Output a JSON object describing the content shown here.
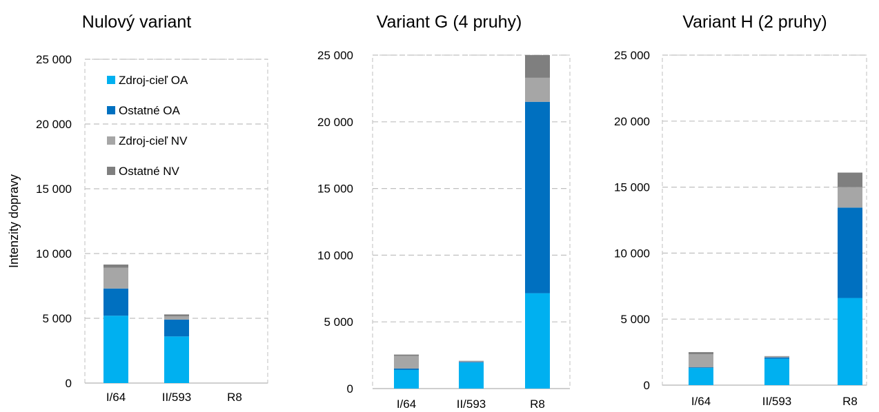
{
  "chart_data": [
    {
      "type": "bar",
      "stacked": true,
      "title": "Nulový variant",
      "ylabel": "Intenzity dopravy",
      "ylim": [
        0,
        25000
      ],
      "yticks": [
        0,
        5000,
        10000,
        15000,
        20000,
        25000
      ],
      "ytick_labels": [
        "0",
        "5 000",
        "10 000",
        "15 000",
        "20 000",
        "25 000"
      ],
      "categories": [
        "I/64",
        "II/593",
        "R8"
      ],
      "grid": true,
      "legend": "inside top-left",
      "series": [
        {
          "name": "Zdroj-cieľ OA",
          "color": "#00b0f0",
          "values": [
            5200,
            3600,
            0
          ]
        },
        {
          "name": "Ostatné OA",
          "color": "#0070c0",
          "values": [
            2100,
            1300,
            0
          ]
        },
        {
          "name": "Zdroj-cieľ NV",
          "color": "#a6a6a6",
          "values": [
            1600,
            250,
            0
          ]
        },
        {
          "name": "Ostatné NV",
          "color": "#7f7f7f",
          "values": [
            250,
            150,
            0
          ]
        }
      ]
    },
    {
      "type": "bar",
      "stacked": true,
      "title": "Variant G (4 pruhy)",
      "ylabel": "",
      "ylim": [
        0,
        25000
      ],
      "yticks": [
        0,
        5000,
        10000,
        15000,
        20000,
        25000
      ],
      "ytick_labels": [
        "0",
        "5 000",
        "10 000",
        "15 000",
        "20 000",
        "25 000"
      ],
      "categories": [
        "I/64",
        "II/593",
        "R8"
      ],
      "grid": true,
      "series": [
        {
          "name": "Zdroj-cieľ OA",
          "color": "#00b0f0",
          "values": [
            1400,
            1950,
            7150
          ]
        },
        {
          "name": "Ostatné OA",
          "color": "#0070c0",
          "values": [
            100,
            50,
            14350
          ]
        },
        {
          "name": "Zdroj-cieľ NV",
          "color": "#a6a6a6",
          "values": [
            950,
            50,
            1800
          ]
        },
        {
          "name": "Ostatné NV",
          "color": "#7f7f7f",
          "values": [
            100,
            30,
            1700
          ]
        }
      ]
    },
    {
      "type": "bar",
      "stacked": true,
      "title": "Variant H (2 pruhy)",
      "ylabel": "",
      "ylim": [
        0,
        25000
      ],
      "yticks": [
        0,
        5000,
        10000,
        15000,
        20000,
        25000
      ],
      "ytick_labels": [
        "0",
        "5 000",
        "10 000",
        "15 000",
        "20 000",
        "25 000"
      ],
      "categories": [
        "I/64",
        "II/593",
        "R8"
      ],
      "grid": true,
      "series": [
        {
          "name": "Zdroj-cieľ OA",
          "color": "#00b0f0",
          "values": [
            1300,
            2000,
            6600
          ]
        },
        {
          "name": "Ostatné OA",
          "color": "#0070c0",
          "values": [
            50,
            100,
            6850
          ]
        },
        {
          "name": "Zdroj-cieľ NV",
          "color": "#a6a6a6",
          "values": [
            1000,
            70,
            1550
          ]
        },
        {
          "name": "Ostatné NV",
          "color": "#7f7f7f",
          "values": [
            150,
            30,
            1100
          ]
        }
      ]
    }
  ],
  "colors": {
    "grid": "#bfbfbf",
    "axis": "#bfbfbf",
    "text": "#000000"
  }
}
